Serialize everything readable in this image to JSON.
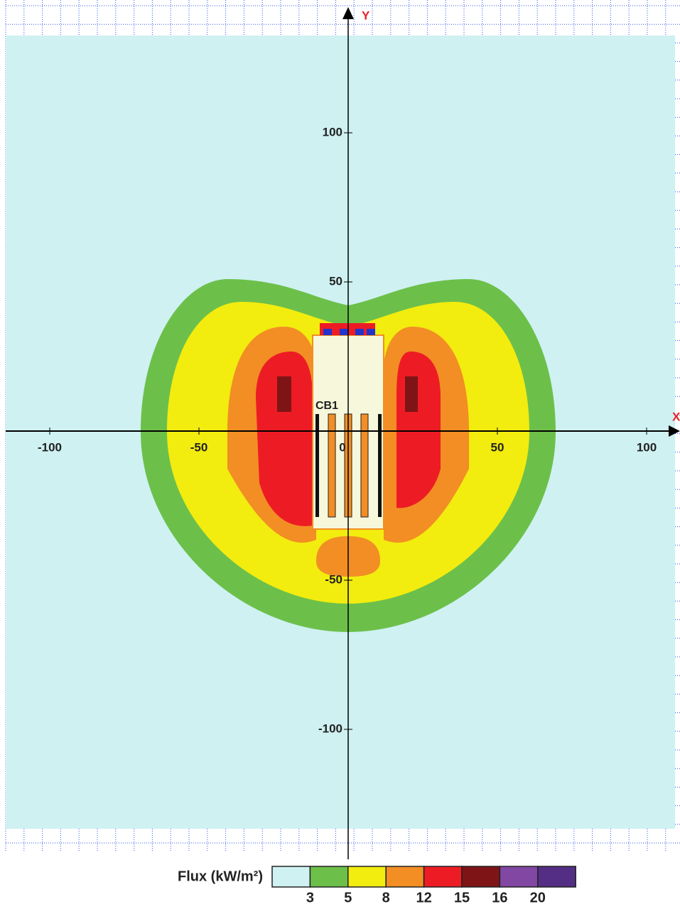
{
  "chart_data": {
    "type": "contour",
    "x_axis_label": "X",
    "y_axis_label": "Y",
    "xlim": [
      -115,
      111
    ],
    "ylim": [
      -140,
      140
    ],
    "xticks": [
      -100,
      -50,
      0,
      50,
      100
    ],
    "yticks": [
      100,
      50,
      -50,
      -100
    ],
    "grid": true,
    "annotation": "CB1",
    "legend": {
      "title": "Flux (kW/m²)",
      "levels": [
        3,
        5,
        8,
        12,
        15,
        16,
        20
      ],
      "colors": [
        "#cff1f2",
        "#6cc04a",
        "#f2ec0f",
        "#f28e24",
        "#ed1c24",
        "#7f1416",
        "#8246a3",
        "#542e84"
      ]
    }
  }
}
